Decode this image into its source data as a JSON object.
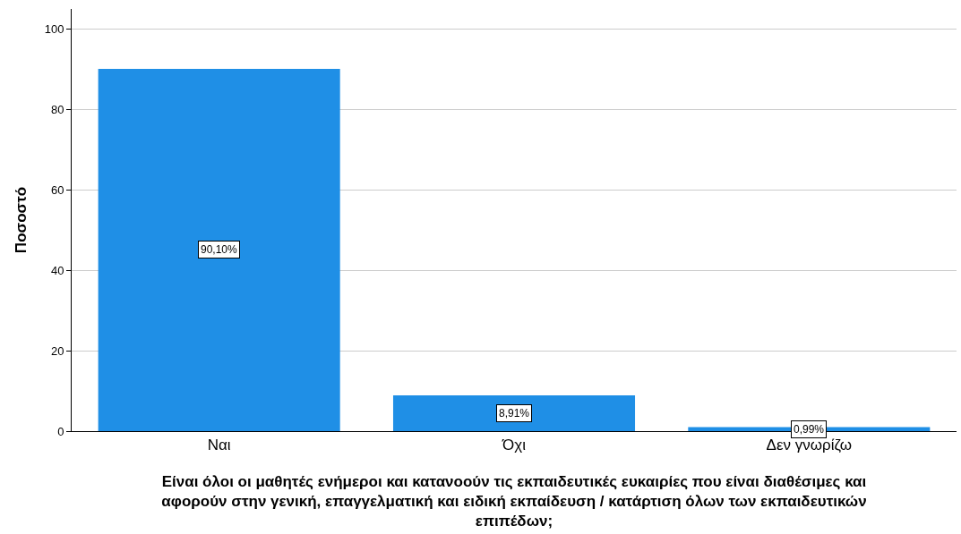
{
  "chart_data": {
    "type": "bar",
    "categories": [
      "Ναι",
      "Όχι",
      "Δεν γνωρίζω"
    ],
    "values": [
      90.1,
      8.91,
      0.99
    ],
    "value_labels": [
      "90,10%",
      "8,91%",
      "0,99%"
    ],
    "color": "#1f8fe6",
    "ylabel": "Ποσοστό",
    "xlabel": "Είναι όλοι οι μαθητές ενήμεροι και κατανοούν τις εκπαιδευτικές ευκαιρίες που είναι διαθέσιμες και αφορούν στην γενική, επαγγελματική και ειδική εκπαίδευση / κατάρτιση όλων των εκπαιδευτικών επιπέδων;",
    "ylim": [
      0,
      105
    ],
    "yticks": [
      0,
      20,
      40,
      60,
      80,
      100
    ],
    "grid": "y"
  }
}
